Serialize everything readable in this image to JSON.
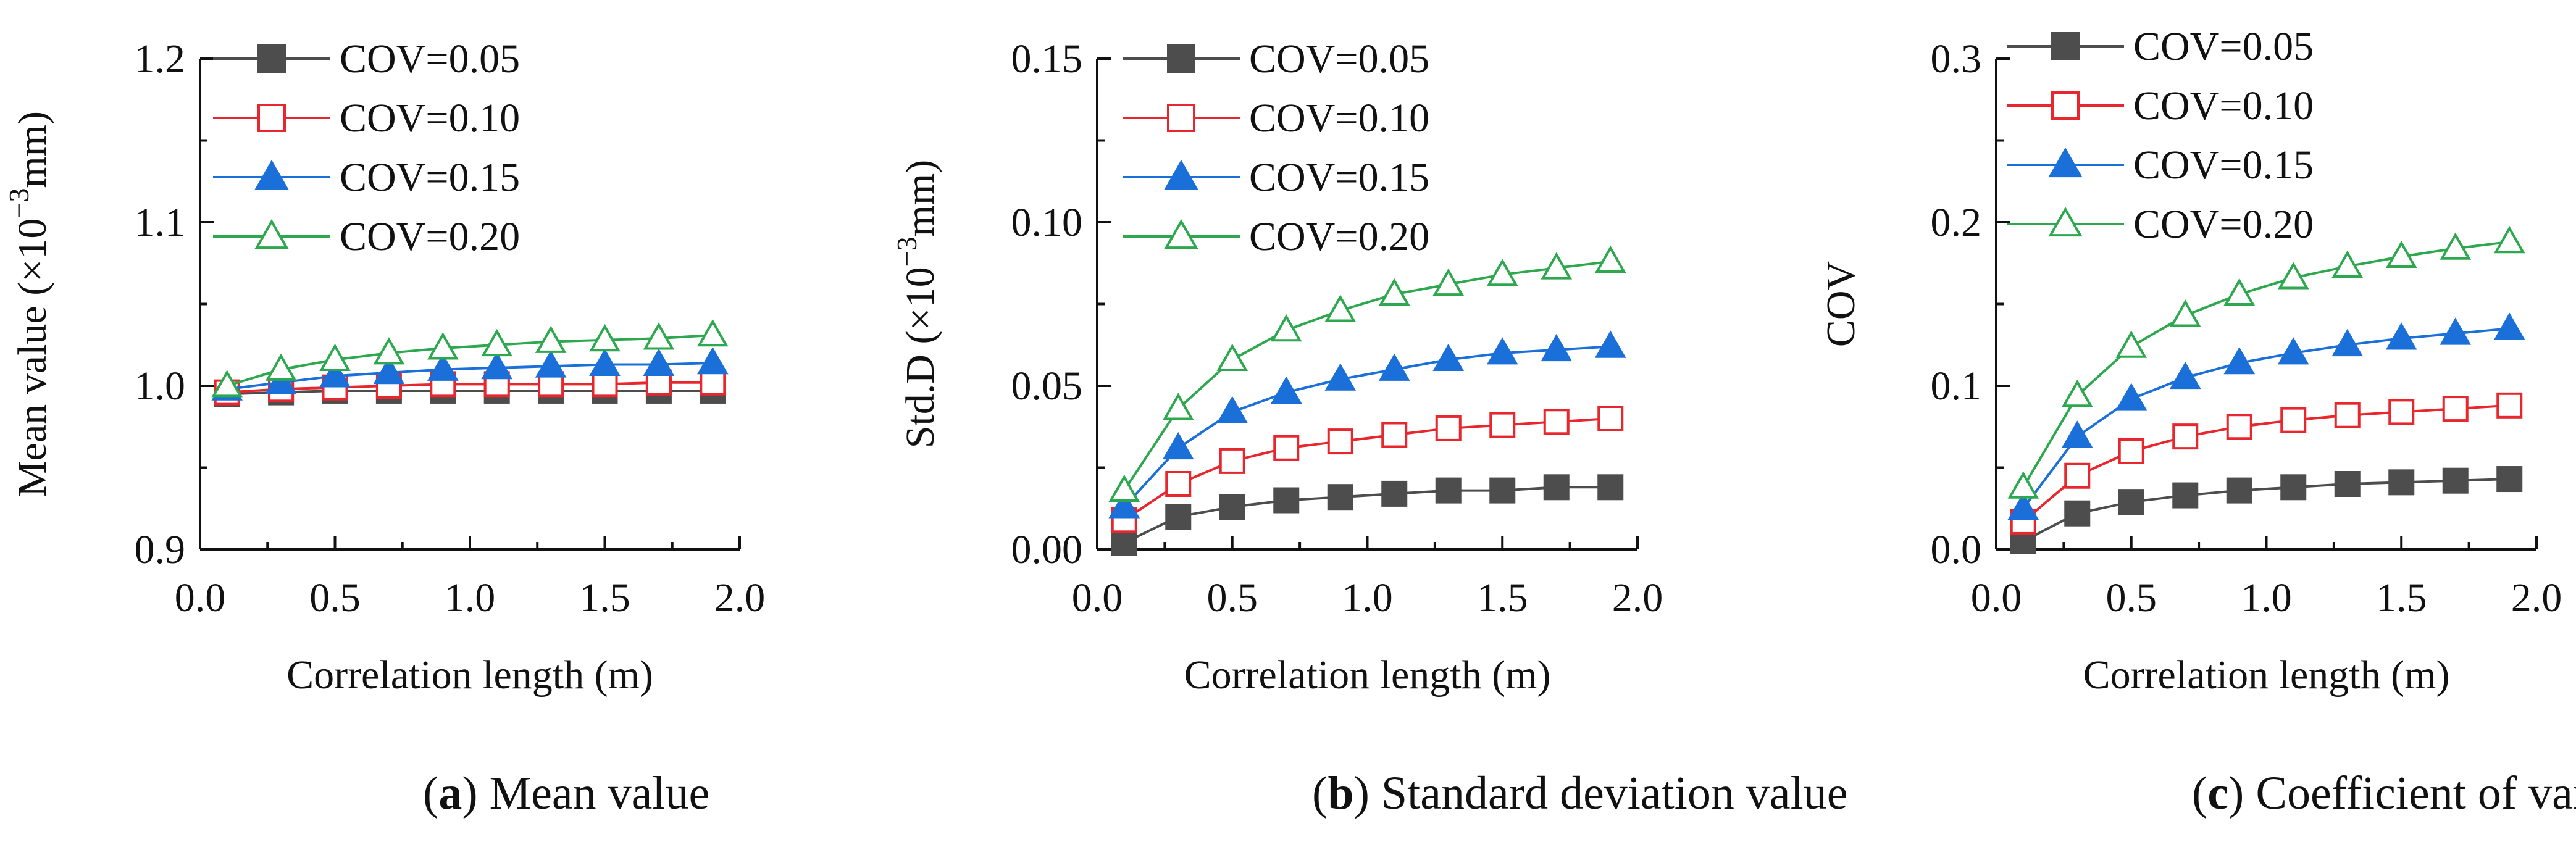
{
  "series_styles": [
    {
      "name": "COV=0.05",
      "color": "#4d4d4d",
      "marker": "square",
      "filled": true
    },
    {
      "name": "COV=0.10",
      "color": "#e8262d",
      "marker": "square",
      "filled": false
    },
    {
      "name": "COV=0.15",
      "color": "#1a6fd9",
      "marker": "triangle",
      "filled": true
    },
    {
      "name": "COV=0.20",
      "color": "#2ea84e",
      "marker": "triangle",
      "filled": false
    }
  ],
  "chart_data": [
    {
      "type": "line",
      "caption_letter": "(a)",
      "caption_text": " Mean value",
      "xlabel": "Correlation length (m)",
      "ylabel_main": "Mean value (×10",
      "ylabel_sup": "−3",
      "ylabel_end": "mm)",
      "xlim": [
        0,
        2
      ],
      "ylim": [
        0.9,
        1.2
      ],
      "xticks": [
        "0.0",
        "0.5",
        "1.0",
        "1.5",
        "2.0"
      ],
      "yticks": [
        "0.9",
        "1.0",
        "1.1",
        "1.2"
      ],
      "x": [
        0.1,
        0.3,
        0.5,
        0.7,
        0.9,
        1.1,
        1.3,
        1.5,
        1.7,
        1.9
      ],
      "series": [
        {
          "name": "COV=0.05",
          "values": [
            0.995,
            0.996,
            0.997,
            0.997,
            0.997,
            0.997,
            0.997,
            0.997,
            0.997,
            0.997
          ]
        },
        {
          "name": "COV=0.10",
          "values": [
            0.996,
            0.998,
            0.999,
            1.0,
            1.001,
            1.001,
            1.001,
            1.001,
            1.002,
            1.002
          ]
        },
        {
          "name": "COV=0.15",
          "values": [
            0.998,
            1.002,
            1.006,
            1.008,
            1.01,
            1.011,
            1.012,
            1.013,
            1.013,
            1.014
          ]
        },
        {
          "name": "COV=0.20",
          "values": [
            1.0,
            1.01,
            1.016,
            1.02,
            1.023,
            1.025,
            1.027,
            1.028,
            1.029,
            1.031
          ]
        }
      ]
    },
    {
      "type": "line",
      "caption_letter": "(b)",
      "caption_text": " Standard deviation value",
      "xlabel": "Correlation length (m)",
      "ylabel_main": "Std.D (×10",
      "ylabel_sup": "−3",
      "ylabel_end": "mm)",
      "xlim": [
        0,
        2
      ],
      "ylim": [
        0,
        0.15
      ],
      "xticks": [
        "0.0",
        "0.5",
        "1.0",
        "1.5",
        "2.0"
      ],
      "yticks": [
        "0.00",
        "0.05",
        "0.10",
        "0.15"
      ],
      "x": [
        0.1,
        0.3,
        0.5,
        0.7,
        0.9,
        1.1,
        1.3,
        1.5,
        1.7,
        1.9
      ],
      "series": [
        {
          "name": "COV=0.05",
          "values": [
            0.002,
            0.01,
            0.013,
            0.015,
            0.016,
            0.017,
            0.018,
            0.018,
            0.019,
            0.019
          ]
        },
        {
          "name": "COV=0.10",
          "values": [
            0.009,
            0.02,
            0.027,
            0.031,
            0.033,
            0.035,
            0.037,
            0.038,
            0.039,
            0.04
          ]
        },
        {
          "name": "COV=0.15",
          "values": [
            0.013,
            0.031,
            0.042,
            0.048,
            0.052,
            0.055,
            0.058,
            0.06,
            0.061,
            0.062
          ]
        },
        {
          "name": "COV=0.20",
          "values": [
            0.018,
            0.043,
            0.058,
            0.067,
            0.073,
            0.078,
            0.081,
            0.084,
            0.086,
            0.088
          ]
        }
      ]
    },
    {
      "type": "line",
      "caption_letter": "(c)",
      "caption_text": " Coefficient of variation",
      "xlabel": "Correlation length (m)",
      "ylabel_main": "COV",
      "ylabel_sup": "",
      "ylabel_end": "",
      "xlim": [
        0,
        2
      ],
      "ylim": [
        0,
        0.3
      ],
      "xticks": [
        "0.0",
        "0.5",
        "1.0",
        "1.5",
        "2.0"
      ],
      "yticks": [
        "0.0",
        "0.1",
        "0.2",
        "0.3"
      ],
      "x": [
        0.1,
        0.3,
        0.5,
        0.7,
        0.9,
        1.1,
        1.3,
        1.5,
        1.7,
        1.9
      ],
      "series": [
        {
          "name": "COV=0.05",
          "values": [
            0.005,
            0.022,
            0.029,
            0.033,
            0.036,
            0.038,
            0.04,
            0.041,
            0.042,
            0.043
          ]
        },
        {
          "name": "COV=0.10",
          "values": [
            0.017,
            0.045,
            0.06,
            0.069,
            0.075,
            0.079,
            0.082,
            0.084,
            0.086,
            0.088
          ]
        },
        {
          "name": "COV=0.15",
          "values": [
            0.025,
            0.069,
            0.092,
            0.105,
            0.114,
            0.12,
            0.125,
            0.129,
            0.132,
            0.135
          ]
        },
        {
          "name": "COV=0.20",
          "values": [
            0.038,
            0.094,
            0.124,
            0.143,
            0.156,
            0.166,
            0.173,
            0.179,
            0.184,
            0.188
          ]
        }
      ]
    }
  ]
}
